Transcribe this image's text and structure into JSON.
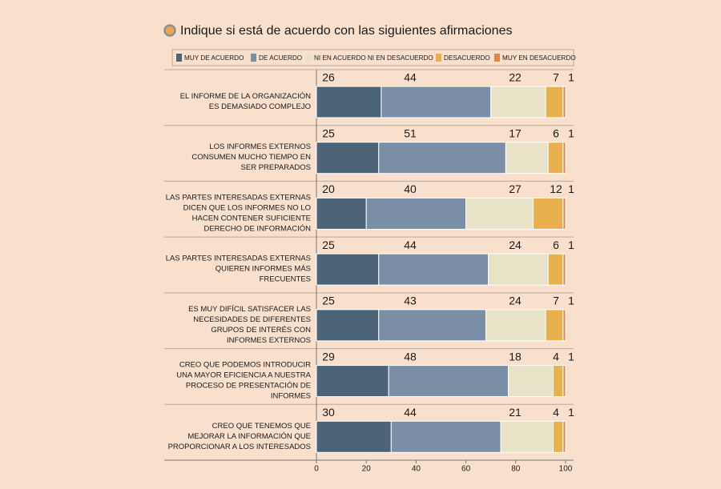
{
  "chart_data": {
    "type": "stacked-barh",
    "title": "Indique si está de acuerdo con las siguientes afirmaciones",
    "categories": [
      [
        "EL INFORME DE LA ORGANIZACIÓN",
        "ES DEMASIADO COMPLEJO"
      ],
      [
        "LOS INFORMES EXTERNOS",
        "CONSUMEN MUCHO TIEMPO EN",
        "SER PREPARADOS"
      ],
      [
        "LAS PARTES INTERESADAS EXTERNAS",
        "DICEN QUE LOS INFORMES NO LO",
        "HACEN CONTENER SUFICIENTE",
        "DERECHO DE INFORMACIÓN"
      ],
      [
        "LAS PARTES INTERESADAS EXTERNAS",
        "QUIEREN INFORMES MÁS",
        "FRECUENTES"
      ],
      [
        "ES MUY DIFÍCIL SATISFACER LAS",
        "NECESIDADES DE DIFERENTES",
        "GRUPOS DE INTERÉS CON",
        "INFORMES EXTERNOS"
      ],
      [
        "CREO QUE PODEMOS INTRODUCIR",
        "UNA MAYOR EFICIENCIA A NUESTRA",
        "PROCESO DE PRESENTACIÓN DE",
        "INFORMES"
      ],
      [
        "CREO QUE TENEMOS QUE",
        "MEJORAR LA INFORMACIÓN QUE",
        "PROPORCIONAR A LOS INTERESADOS"
      ]
    ],
    "series": [
      {
        "name": "MUY DE ACUERDO",
        "color": "#4b6478",
        "values": [
          26,
          25,
          20,
          25,
          25,
          29,
          30
        ]
      },
      {
        "name": "DE ACUERDO",
        "color": "#7a8fa5",
        "values": [
          44,
          51,
          40,
          44,
          43,
          48,
          44
        ]
      },
      {
        "name": "NI EN ACUERDO NI EN DESACUERDO",
        "color": "#e8e2c6",
        "values": [
          22,
          17,
          27,
          24,
          24,
          18,
          21
        ]
      },
      {
        "name": "DESACUERDO",
        "color": "#e9b04e",
        "values": [
          7,
          6,
          12,
          6,
          7,
          4,
          4
        ]
      },
      {
        "name": "MUY EN DESACUERDO",
        "color": "#e0884a",
        "values": [
          1,
          1,
          1,
          1,
          1,
          1,
          1
        ]
      }
    ],
    "xlim": [
      0,
      100
    ],
    "xticks": [
      0,
      20,
      40,
      60,
      80,
      100
    ]
  }
}
